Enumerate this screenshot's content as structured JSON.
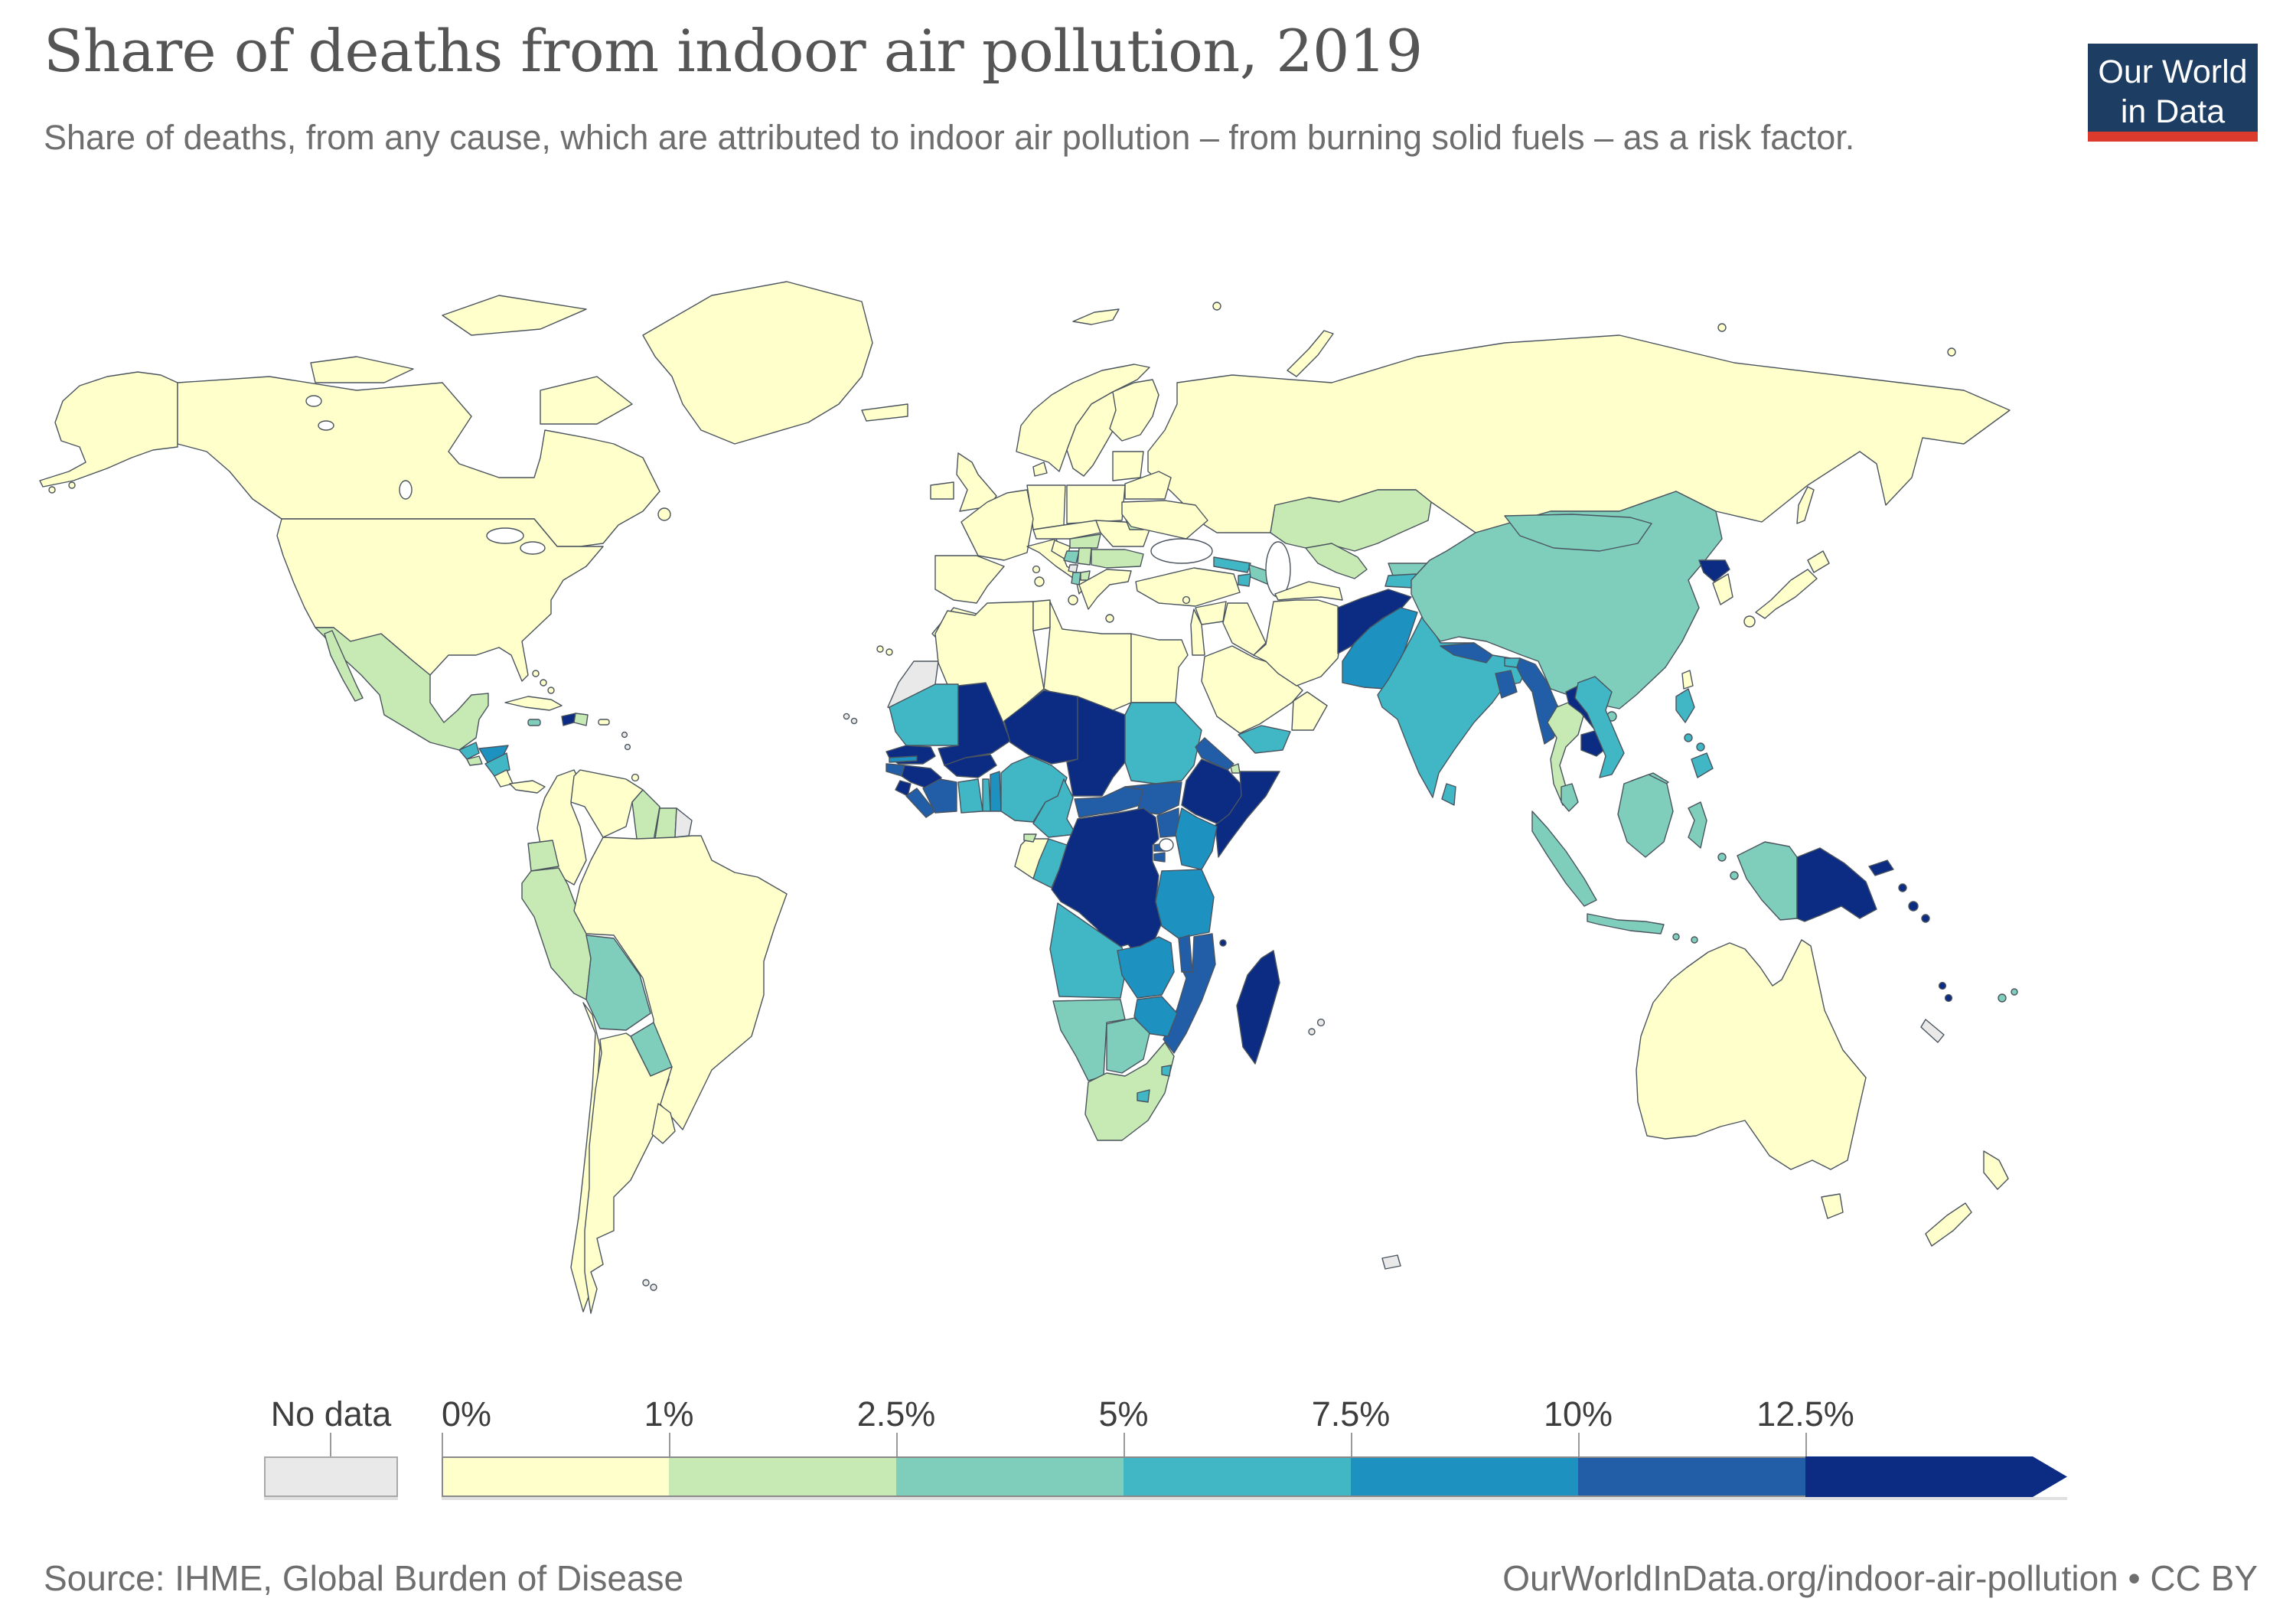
{
  "header": {
    "title": "Share of deaths from indoor air pollution, 2019",
    "subtitle": "Share of deaths, from any cause, which are attributed to indoor air pollution – from burning solid fuels – as a risk factor.",
    "logo": {
      "line1": "Our World",
      "line2": "in Data",
      "bg_color": "#1d3d63",
      "accent_color": "#dc3a2c"
    }
  },
  "chart_data": {
    "type": "choropleth_map",
    "title": "Share of deaths from indoor air pollution, 2019",
    "year": 2019,
    "unit": "%",
    "legend": {
      "no_data_label": "No data",
      "no_data_color": "#e9e9e9",
      "tick_labels": [
        "0%",
        "1%",
        "2.5%",
        "5%",
        "7.5%",
        "10%",
        "12.5%"
      ],
      "bins": [
        {
          "range": "0–1%",
          "color": "#ffffcc"
        },
        {
          "range": "1–2.5%",
          "color": "#c7e9b4"
        },
        {
          "range": "2.5–5%",
          "color": "#7fcdbb"
        },
        {
          "range": "5–7.5%",
          "color": "#41b6c4"
        },
        {
          "range": "7.5–10%",
          "color": "#1d91c0"
        },
        {
          "range": "10–12.5%",
          "color": "#225ea8"
        },
        {
          "range": ">12.5%",
          "color": "#0c2c84"
        }
      ]
    },
    "countries": {
      "United States": 0,
      "Canada": 0,
      "Greenland": 0,
      "Mexico": 1,
      "Guatemala": 3,
      "El Salvador": 1,
      "Honduras": 4,
      "Nicaragua": 3,
      "Costa Rica": 0,
      "Panama": 0,
      "Cuba": 0,
      "Jamaica": 2,
      "Haiti": 6,
      "Dominican Republic": 1,
      "Puerto Rico": 0,
      "Bahamas": 0,
      "Trinidad and Tobago": 0,
      "Guadeloupe": -1,
      "Martinique": -1,
      "Colombia": 0,
      "Venezuela": 0,
      "Guyana": 1,
      "Suriname": 1,
      "French Guiana": -1,
      "Ecuador": 1,
      "Peru": 1,
      "Brazil": 0,
      "Bolivia": 2,
      "Paraguay": 2,
      "Chile": 0,
      "Argentina": 0,
      "Uruguay": 0,
      "Falkland Islands": -1,
      "Iceland": 0,
      "United Kingdom": 0,
      "Ireland": 0,
      "Norway": 0,
      "Sweden": 0,
      "Finland": 0,
      "Denmark": 0,
      "Germany": 0,
      "France": 0,
      "Spain": 0,
      "Italy": 0,
      "Czechia": 0,
      "Poland": 0,
      "Baltic states": 0,
      "Belarus": 0,
      "Ukraine": 0,
      "Moldova": 1,
      "Romania": 0,
      "Hungary": 1,
      "Croatia": 0,
      "Bosnia and Herzegovina": 2,
      "Serbia": 1,
      "Montenegro": -1,
      "Albania": 2,
      "North Macedonia": 1,
      "Bulgaria": 1,
      "Greece": 0,
      "Cyprus": 0,
      "Russia": 0,
      "Turkey": 0,
      "Georgia": 3,
      "Armenia": 3,
      "Azerbaijan": 2,
      "Syria": 0,
      "Iraq": 0,
      "Jordan": 0,
      "Saudi Arabia": 0,
      "Yemen": 3,
      "Oman": 0,
      "Iran": 0,
      "Kazakhstan": 1,
      "Uzbekistan": 1,
      "Turkmenistan": 0,
      "Kyrgyzstan": 2,
      "Tajikistan": 3,
      "Afghanistan": 6,
      "Pakistan": 4,
      "India": 3,
      "Nepal": 5,
      "Bhutan": 3,
      "Bangladesh": 5,
      "Sri Lanka": 3,
      "China": 2,
      "Mongolia": 2,
      "North Korea": 6,
      "South Korea": 0,
      "Japan": 0,
      "Taiwan": 0,
      "Myanmar": 5,
      "Thailand": 1,
      "Laos": 6,
      "Cambodia": 6,
      "Vietnam": 3,
      "Malaysia": 2,
      "Indonesia": 2,
      "Philippines": 3,
      "Papua New Guinea": 6,
      "Solomon Islands": 6,
      "Vanuatu": 6,
      "Fiji": 2,
      "New Caledonia": -1,
      "Australia": 0,
      "New Zealand": 0,
      "Morocco": 0,
      "Western Sahara": -1,
      "Algeria": 0,
      "Tunisia": 0,
      "Libya": 0,
      "Egypt": 0,
      "Mauritania": 3,
      "Mali": 6,
      "Niger": 6,
      "Chad": 6,
      "Sudan": 3,
      "Eritrea": 5,
      "Djibouti": 1,
      "Ethiopia": 6,
      "Somalia": 6,
      "Senegal": 6,
      "Gambia": 4,
      "Guinea-Bissau": 5,
      "Guinea": 6,
      "Sierra Leone": 6,
      "Liberia": 5,
      "Cote d'Ivoire": 5,
      "Burkina Faso": 6,
      "Ghana": 3,
      "Togo": 3,
      "Benin": 4,
      "Nigeria": 3,
      "Cameroon": 3,
      "Central African Republic": 5,
      "South Sudan": 5,
      "Uganda": 5,
      "Kenya": 4,
      "Rwanda": 5,
      "Burundi": 5,
      "Democratic Republic of Congo": 6,
      "Congo": 3,
      "Gabon": 0,
      "Equatorial Guinea": 1,
      "Angola": 3,
      "Zambia": 4,
      "Tanzania": 4,
      "Malawi": 5,
      "Mozambique": 5,
      "Zimbabwe": 4,
      "Namibia": 2,
      "Botswana": 2,
      "South Africa": 1,
      "Lesotho": 3,
      "Eswatini": 3,
      "Madagascar": 6,
      "Comoros": 6,
      "Mauritius": -1,
      "Reunion": -1,
      "Cape Verde": -1,
      "French Southern Territories": -1
    }
  },
  "footer": {
    "source": "Source: IHME, Global Burden of Disease",
    "credit": "OurWorldInData.org/indoor-air-pollution • CC BY"
  }
}
